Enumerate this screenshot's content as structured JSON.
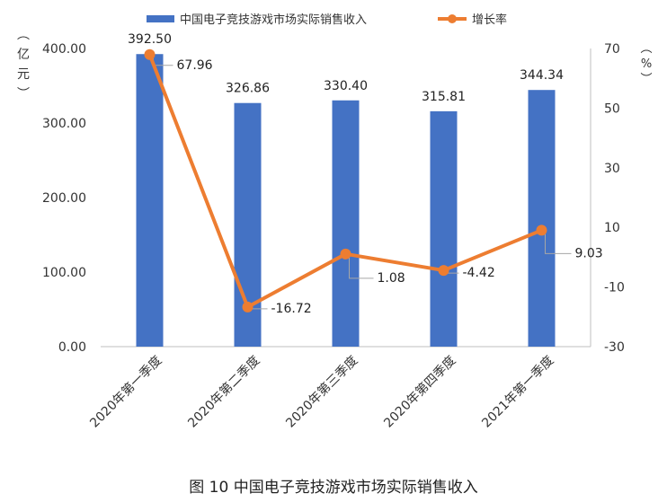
{
  "chart_data": {
    "type": "bar+line",
    "categories": [
      "2020年第一季度",
      "2020年第二季度",
      "2020年第三季度",
      "2020年第四季度",
      "2021年第一季度"
    ],
    "series": [
      {
        "name": "中国电子竞技游戏市场实际销售收入",
        "type": "bar",
        "axis": "left",
        "values": [
          392.5,
          326.86,
          330.4,
          315.81,
          344.34
        ],
        "labels": [
          "392.50",
          "326.86",
          "330.40",
          "315.81",
          "344.34"
        ],
        "color": "#4472C4"
      },
      {
        "name": "增长率",
        "type": "line",
        "axis": "right",
        "values": [
          67.96,
          -16.72,
          1.08,
          -4.42,
          9.03
        ],
        "labels": [
          "67.96",
          "-16.72",
          "1.08",
          "-4.42",
          "9.03"
        ],
        "color": "#ED7D31"
      }
    ],
    "y_left": {
      "label": "（亿元）",
      "ylim": [
        0,
        400
      ],
      "ticks": [
        "0.00",
        "100.00",
        "200.00",
        "300.00",
        "400.00"
      ]
    },
    "y_right": {
      "label": "（%）",
      "ylim": [
        -30,
        70
      ],
      "ticks": [
        "-30",
        "-10",
        "10",
        "30",
        "50",
        "70"
      ]
    },
    "legend": "top",
    "grid": false
  },
  "caption": "图 10  中国电子竞技游戏市场实际销售收入"
}
